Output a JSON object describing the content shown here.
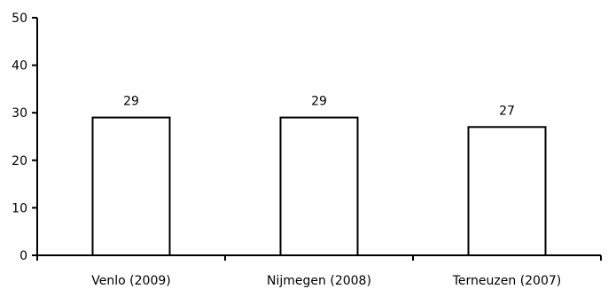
{
  "chart_data": {
    "type": "bar",
    "categories": [
      "Venlo (2009)",
      "Nijmegen (2008)",
      "Terneuzen (2007)"
    ],
    "values": [
      29,
      29,
      27
    ],
    "data_labels": [
      "29",
      "29",
      "27"
    ],
    "title": "",
    "xlabel": "",
    "ylabel": "",
    "ylim": [
      0,
      50
    ],
    "yticks": [
      0,
      10,
      20,
      30,
      40,
      50
    ],
    "grid": false,
    "legend": "none",
    "colors": {
      "bar_fill": "#ffffff",
      "bar_stroke": "#000000",
      "axis": "#000000"
    }
  }
}
